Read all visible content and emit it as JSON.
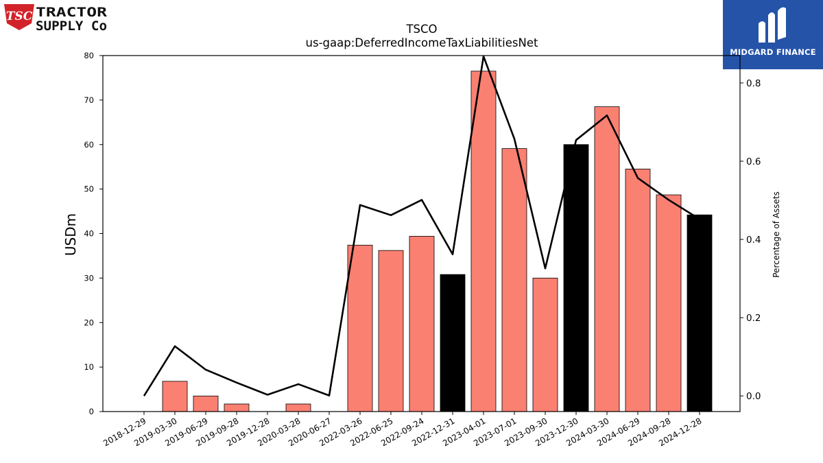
{
  "logos": {
    "left": {
      "line1": "TRACTOR",
      "line2": "SUPPLY Co",
      "badge": "TSC"
    },
    "right": {
      "text": "MIDGARD FINANCE"
    }
  },
  "chart_data": {
    "type": "bar",
    "title": "TSCO",
    "subtitle": "us-gaap:DeferredIncomeTaxLiabilitiesNet",
    "ylabel": "USDm",
    "y2label": "Percentage of Assets",
    "ylim": [
      0,
      80
    ],
    "y2lim": [
      -0.04,
      0.87
    ],
    "yticks": [
      0,
      10,
      20,
      30,
      40,
      50,
      60,
      70,
      80
    ],
    "y2ticks": [
      "0.0",
      "0.2",
      "0.4",
      "0.6",
      "0.8"
    ],
    "categories": [
      "2018-12-29",
      "2019-03-30",
      "2019-06-29",
      "2019-09-28",
      "2019-12-28",
      "2020-03-28",
      "2020-06-27",
      "2022-03-26",
      "2022-06-25",
      "2022-09-24",
      "2022-12-31",
      "2023-04-01",
      "2023-07-01",
      "2023-09-30",
      "2023-12-30",
      "2024-03-30",
      "2024-06-29",
      "2024-09-28",
      "2024-12-28"
    ],
    "series": [
      {
        "values": [
          0,
          6.8,
          3.5,
          1.7,
          0,
          1.7,
          0,
          37.4,
          36.2,
          39.4,
          30.8,
          76.5,
          59.1,
          30.0,
          60.0,
          68.5,
          54.5,
          48.7,
          44.2
        ],
        "colors": [
          "#fa8072",
          "#fa8072",
          "#fa8072",
          "#fa8072",
          "#fa8072",
          "#fa8072",
          "#fa8072",
          "#fa8072",
          "#fa8072",
          "#fa8072",
          "#000000",
          "#fa8072",
          "#fa8072",
          "#fa8072",
          "#000000",
          "#fa8072",
          "#fa8072",
          "#fa8072",
          "#000000"
        ],
        "axis": "left",
        "kind": "bar"
      },
      {
        "values": [
          0.0,
          0.127,
          0.067,
          0.034,
          0.003,
          0.03,
          0.001,
          0.488,
          0.462,
          0.501,
          0.362,
          0.868,
          0.657,
          0.326,
          0.654,
          0.717,
          0.557,
          0.501,
          0.452
        ],
        "color": "#000000",
        "axis": "right",
        "kind": "line"
      }
    ],
    "grid": false,
    "legend": "none"
  }
}
